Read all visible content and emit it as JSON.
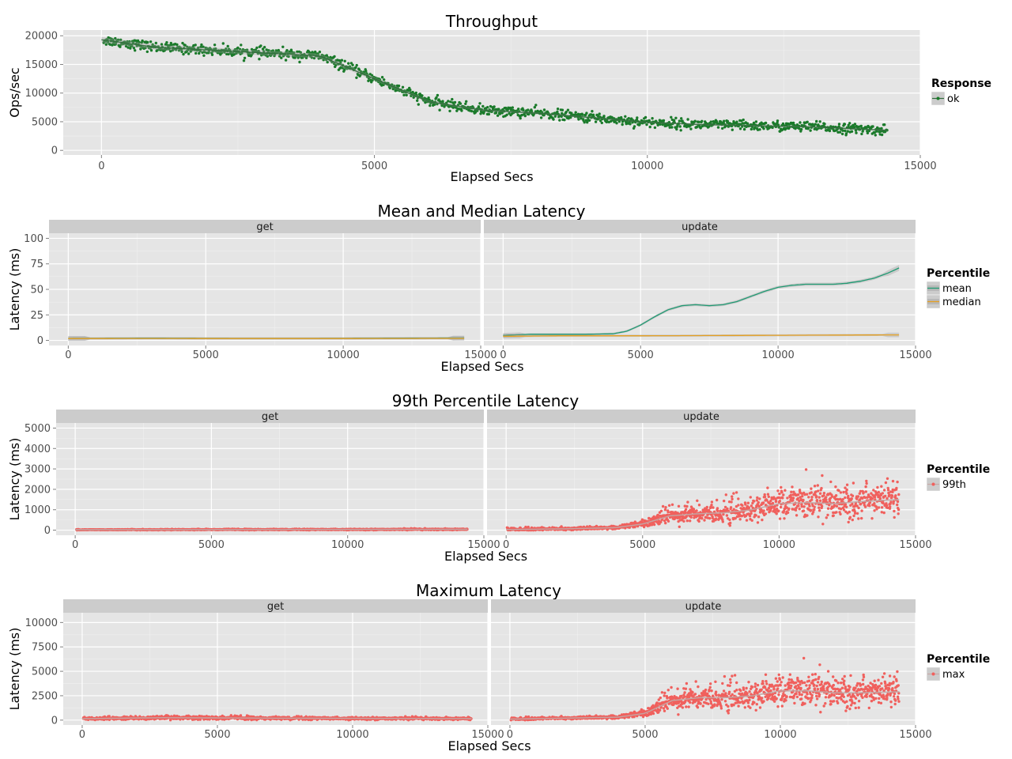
{
  "chart_data": [
    {
      "type": "scatter",
      "title": "Throughput",
      "xlabel": "Elapsed Secs",
      "ylabel": "Ops/sec",
      "xlim": [
        -700,
        15000
      ],
      "ylim": [
        -800,
        21000
      ],
      "x_ticks": [
        0,
        5000,
        10000,
        15000
      ],
      "x_tick_labels": [
        "0",
        "5000",
        "10000",
        "15000"
      ],
      "y_ticks": [
        0,
        5000,
        10000,
        15000,
        20000
      ],
      "y_tick_labels": [
        "0",
        "5000",
        "10000",
        "15000",
        "20000"
      ],
      "grid": true,
      "legend": {
        "title": "Response",
        "position": "right",
        "entries": [
          "ok"
        ]
      },
      "series": [
        {
          "name": "ok",
          "color": "#1a7a2a",
          "trend_x": [
            0,
            1000,
            2000,
            3000,
            4000,
            5000,
            6000,
            7000,
            8000,
            9000,
            10000,
            11000,
            12000,
            13000,
            14400
          ],
          "trend_y": [
            19300,
            18000,
            17500,
            17000,
            16500,
            12500,
            8500,
            7000,
            6500,
            5700,
            4900,
            4500,
            4300,
            4100,
            3500
          ],
          "spread": 1100
        }
      ]
    },
    {
      "type": "line",
      "title": "Mean and Median Latency",
      "xlabel": "Elapsed Secs",
      "ylabel": "Latency (ms)",
      "xlim": [
        -700,
        15000
      ],
      "ylim": [
        -5,
        105
      ],
      "x_ticks": [
        0,
        5000,
        10000,
        15000
      ],
      "x_tick_labels": [
        "0",
        "5000",
        "10000",
        "15000"
      ],
      "y_ticks": [
        0,
        25,
        50,
        75,
        100
      ],
      "y_tick_labels": [
        "0",
        "25",
        "50",
        "75",
        "100"
      ],
      "grid": true,
      "facets": [
        "get",
        "update"
      ],
      "legend": {
        "title": "Percentile",
        "position": "right",
        "entries": [
          "mean",
          "median"
        ]
      },
      "series": [
        {
          "name": "mean",
          "facet": "get",
          "color": "#1f9a72",
          "x": [
            0,
            3000,
            6000,
            9000,
            12000,
            14400
          ],
          "y": [
            2.0,
            2.2,
            2.0,
            2.0,
            2.2,
            2.4
          ]
        },
        {
          "name": "median",
          "facet": "get",
          "color": "#e6a020",
          "x": [
            0,
            3000,
            6000,
            9000,
            12000,
            14400
          ],
          "y": [
            1.8,
            1.9,
            1.8,
            1.8,
            1.9,
            2.0
          ]
        },
        {
          "name": "mean",
          "facet": "update",
          "color": "#1f9a72",
          "x": [
            0,
            1000,
            2000,
            3000,
            4000,
            4500,
            5000,
            5500,
            6000,
            6500,
            7000,
            7500,
            8000,
            8500,
            9000,
            9500,
            10000,
            10500,
            11000,
            11500,
            12000,
            12500,
            13000,
            13500,
            14000,
            14400
          ],
          "y": [
            5,
            6,
            6,
            6,
            6.5,
            9,
            15,
            23,
            30,
            34,
            35,
            34,
            35,
            38,
            43,
            48,
            52,
            54,
            55,
            55,
            55,
            56,
            58,
            61,
            66,
            71
          ]
        },
        {
          "name": "median",
          "facet": "update",
          "color": "#e6a020",
          "x": [
            0,
            2000,
            4000,
            6000,
            8000,
            10000,
            12000,
            14400
          ],
          "y": [
            4,
            4.5,
            4.5,
            4.6,
            4.8,
            5,
            5.2,
            5.4
          ]
        }
      ]
    },
    {
      "type": "scatter",
      "title": "99th Percentile Latency",
      "xlabel": "Elapsed Secs",
      "ylabel": "Latency (ms)",
      "xlim": [
        -700,
        15000
      ],
      "ylim": [
        -250,
        5250
      ],
      "x_ticks": [
        0,
        5000,
        10000,
        15000
      ],
      "x_tick_labels": [
        "0",
        "5000",
        "10000",
        "15000"
      ],
      "y_ticks": [
        0,
        1000,
        2000,
        3000,
        4000,
        5000
      ],
      "y_tick_labels": [
        "0",
        "1000",
        "2000",
        "3000",
        "4000",
        "5000"
      ],
      "grid": true,
      "facets": [
        "get",
        "update"
      ],
      "legend": {
        "title": "Percentile",
        "position": "right",
        "entries": [
          "99th"
        ]
      },
      "series": [
        {
          "name": "99th",
          "facet": "get",
          "color": "#f0605d",
          "trend_x": [
            0,
            14400
          ],
          "trend_y": [
            20,
            40
          ],
          "spread": 25
        },
        {
          "name": "99th",
          "facet": "update",
          "color": "#f0605d",
          "trend_x": [
            0,
            2000,
            4000,
            5000,
            6000,
            7000,
            8000,
            9000,
            10000,
            11000,
            12000,
            13000,
            14400
          ],
          "trend_y": [
            30,
            60,
            120,
            300,
            700,
            800,
            850,
            1000,
            1300,
            1350,
            1300,
            1400,
            1500
          ],
          "spread": 700
        }
      ]
    },
    {
      "type": "scatter",
      "title": "Maximum Latency",
      "xlabel": "Elapsed Secs",
      "ylabel": "Latency (ms)",
      "xlim": [
        -700,
        15000
      ],
      "ylim": [
        -500,
        11000
      ],
      "x_ticks": [
        0,
        5000,
        10000,
        15000
      ],
      "x_tick_labels": [
        "0",
        "5000",
        "10000",
        "15000"
      ],
      "y_ticks": [
        0,
        2500,
        5000,
        7500,
        10000
      ],
      "y_tick_labels": [
        "0",
        "2500",
        "5000",
        "7500",
        "10000"
      ],
      "grid": true,
      "facets": [
        "get",
        "update"
      ],
      "legend": {
        "title": "Percentile",
        "position": "right",
        "entries": [
          "max"
        ]
      },
      "series": [
        {
          "name": "max",
          "facet": "get",
          "color": "#f0605d",
          "trend_x": [
            0,
            3000,
            7000,
            10000,
            14400
          ],
          "trend_y": [
            150,
            250,
            200,
            180,
            150
          ],
          "spread": 150
        },
        {
          "name": "max",
          "facet": "update",
          "color": "#f0605d",
          "trend_x": [
            0,
            2000,
            4000,
            5000,
            6000,
            7000,
            8000,
            9000,
            10000,
            11000,
            12000,
            13000,
            14400
          ],
          "trend_y": [
            100,
            200,
            300,
            700,
            2000,
            2300,
            2300,
            2500,
            3000,
            3000,
            2800,
            2800,
            2900
          ],
          "spread": 1300
        }
      ]
    }
  ]
}
